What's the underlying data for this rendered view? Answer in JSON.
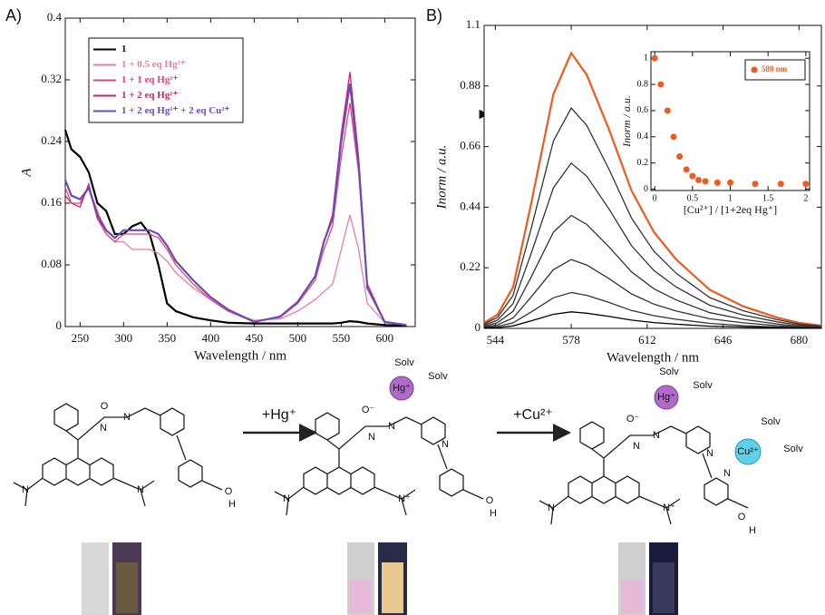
{
  "chart_data": [
    {
      "type": "line",
      "label": "A)",
      "x_label": "Wavelength / nm",
      "y_label": "A",
      "xlim": [
        233,
        635
      ],
      "ylim": [
        0,
        0.4
      ],
      "xticks": [
        250,
        300,
        350,
        400,
        450,
        500,
        550,
        600
      ],
      "yticks": [
        0,
        0.08,
        0.16,
        0.24,
        0.32,
        0.4
      ],
      "x": [
        233,
        240,
        250,
        260,
        270,
        280,
        290,
        300,
        310,
        320,
        330,
        340,
        350,
        360,
        380,
        400,
        420,
        450,
        480,
        500,
        520,
        530,
        540,
        550,
        560,
        570,
        580,
        600,
        625
      ],
      "series": [
        {
          "name": "1",
          "color": "#000000",
          "values": [
            0.255,
            0.23,
            0.22,
            0.2,
            0.16,
            0.15,
            0.12,
            0.12,
            0.13,
            0.135,
            0.12,
            0.08,
            0.03,
            0.02,
            0.012,
            0.008,
            0.005,
            0.004,
            0.004,
            0.004,
            0.004,
            0.004,
            0.004,
            0.005,
            0.007,
            0.006,
            0.004,
            0.002,
            0.001
          ]
        },
        {
          "name": "1 + 0.5 eq Hg¹⁺",
          "color": "#ec7aa8",
          "values": [
            0.19,
            0.17,
            0.165,
            0.18,
            0.15,
            0.12,
            0.11,
            0.11,
            0.1,
            0.1,
            0.1,
            0.095,
            0.085,
            0.07,
            0.05,
            0.035,
            0.02,
            0.008,
            0.01,
            0.02,
            0.035,
            0.045,
            0.055,
            0.1,
            0.145,
            0.1,
            0.03,
            0.005,
            0.002
          ]
        },
        {
          "name": "1 + 1 eq Hg¹⁺",
          "color": "#e8407f",
          "values": [
            0.18,
            0.16,
            0.16,
            0.18,
            0.14,
            0.12,
            0.11,
            0.12,
            0.12,
            0.12,
            0.12,
            0.115,
            0.1,
            0.08,
            0.055,
            0.035,
            0.02,
            0.006,
            0.012,
            0.03,
            0.06,
            0.1,
            0.13,
            0.22,
            0.29,
            0.2,
            0.05,
            0.006,
            0.002
          ]
        },
        {
          "name": "1 + 2 eq Hg¹⁺",
          "color": "#d81b6a",
          "values": [
            0.17,
            0.16,
            0.155,
            0.185,
            0.14,
            0.125,
            0.115,
            0.125,
            0.125,
            0.125,
            0.125,
            0.12,
            0.105,
            0.085,
            0.06,
            0.038,
            0.022,
            0.006,
            0.013,
            0.032,
            0.065,
            0.11,
            0.145,
            0.25,
            0.33,
            0.22,
            0.055,
            0.006,
            0.002
          ]
        },
        {
          "name": "1 + 2 eq Hg¹⁺ + 2 eq Cu²⁺",
          "color": "#6a4cb4",
          "values": [
            0.19,
            0.17,
            0.165,
            0.18,
            0.145,
            0.125,
            0.115,
            0.125,
            0.125,
            0.125,
            0.125,
            0.12,
            0.105,
            0.085,
            0.06,
            0.038,
            0.022,
            0.006,
            0.013,
            0.032,
            0.065,
            0.11,
            0.14,
            0.24,
            0.315,
            0.21,
            0.05,
            0.006,
            0.002
          ]
        }
      ]
    },
    {
      "type": "line",
      "label": "B)",
      "x_label": "Wavelength / nm",
      "y_label": "Inorm / a.u.",
      "xlim": [
        539,
        690
      ],
      "ylim": [
        0,
        1.1
      ],
      "xticks": [
        544,
        578,
        612,
        646,
        680
      ],
      "yticks": [
        0,
        0.22,
        0.44,
        0.66,
        0.88,
        1.1
      ],
      "x": [
        539,
        545,
        552,
        560,
        570,
        578,
        585,
        595,
        605,
        615,
        625,
        640,
        655,
        670,
        680,
        690
      ],
      "series": [
        {
          "color": "#f05a1e",
          "values": [
            0.02,
            0.05,
            0.15,
            0.45,
            0.85,
            1.0,
            0.92,
            0.72,
            0.5,
            0.35,
            0.25,
            0.14,
            0.08,
            0.04,
            0.02,
            0.01
          ]
        },
        {
          "color": "#333333",
          "values": [
            0.016,
            0.04,
            0.12,
            0.36,
            0.68,
            0.8,
            0.736,
            0.576,
            0.4,
            0.28,
            0.2,
            0.112,
            0.064,
            0.032,
            0.016,
            0.008
          ]
        },
        {
          "color": "#333333",
          "values": [
            0.012,
            0.03,
            0.09,
            0.27,
            0.51,
            0.6,
            0.552,
            0.432,
            0.3,
            0.21,
            0.15,
            0.084,
            0.048,
            0.024,
            0.012,
            0.006
          ]
        },
        {
          "color": "#333333",
          "values": [
            0.008,
            0.021,
            0.062,
            0.185,
            0.349,
            0.41,
            0.377,
            0.295,
            0.205,
            0.144,
            0.103,
            0.057,
            0.033,
            0.016,
            0.008,
            0.004
          ]
        },
        {
          "color": "#333333",
          "values": [
            0.005,
            0.013,
            0.038,
            0.113,
            0.213,
            0.25,
            0.23,
            0.18,
            0.125,
            0.088,
            0.063,
            0.035,
            0.02,
            0.01,
            0.005,
            0.003
          ]
        },
        {
          "color": "#333333",
          "values": [
            0.003,
            0.007,
            0.02,
            0.059,
            0.111,
            0.13,
            0.12,
            0.094,
            0.065,
            0.046,
            0.033,
            0.018,
            0.01,
            0.005,
            0.003,
            0.001
          ]
        },
        {
          "color": "#000000",
          "values": [
            0.001,
            0.003,
            0.009,
            0.027,
            0.051,
            0.06,
            0.055,
            0.043,
            0.03,
            0.021,
            0.015,
            0.008,
            0.005,
            0.002,
            0.001,
            0.001
          ]
        }
      ]
    },
    {
      "type": "scatter",
      "x_label": "[Cu²⁺] / [1+2eq Hg⁺]",
      "y_label": "Inorm / a.u.",
      "xlim": [
        -0.05,
        2.05
      ],
      "ylim": [
        -0.01,
        1.05
      ],
      "xticks": [
        0,
        0.5,
        1,
        1.5,
        2
      ],
      "yticks": [
        0,
        0.2,
        0.4,
        0.6,
        0.8,
        1
      ],
      "series": [
        {
          "name": "580 nm",
          "color": "#f05a1e",
          "x": [
            0,
            0.08,
            0.17,
            0.25,
            0.33,
            0.42,
            0.5,
            0.58,
            0.67,
            0.83,
            1,
            1.33,
            1.67,
            2
          ],
          "values": [
            1,
            0.8,
            0.6,
            0.4,
            0.25,
            0.15,
            0.1,
            0.07,
            0.06,
            0.05,
            0.05,
            0.04,
            0.04,
            0.04
          ]
        }
      ]
    }
  ],
  "scheme": {
    "arrows": [
      "+Hg⁺",
      "+Cu²⁺"
    ],
    "structures": [
      {
        "labels": [
          "O",
          "N",
          "N",
          "N",
          "N",
          "O",
          "H"
        ]
      },
      {
        "labels": [
          "Hg⁺",
          "Solv",
          "Solv",
          "O⁻",
          "N",
          "N",
          "N",
          "N⁺",
          "N",
          "O",
          "H"
        ]
      },
      {
        "labels": [
          "Hg⁺",
          "Solv",
          "Solv",
          "O⁻",
          "N",
          "N",
          "N",
          "N⁺",
          "N",
          "Cu²⁺",
          "Solv",
          "Solv",
          "N",
          "O",
          "H"
        ]
      }
    ]
  }
}
